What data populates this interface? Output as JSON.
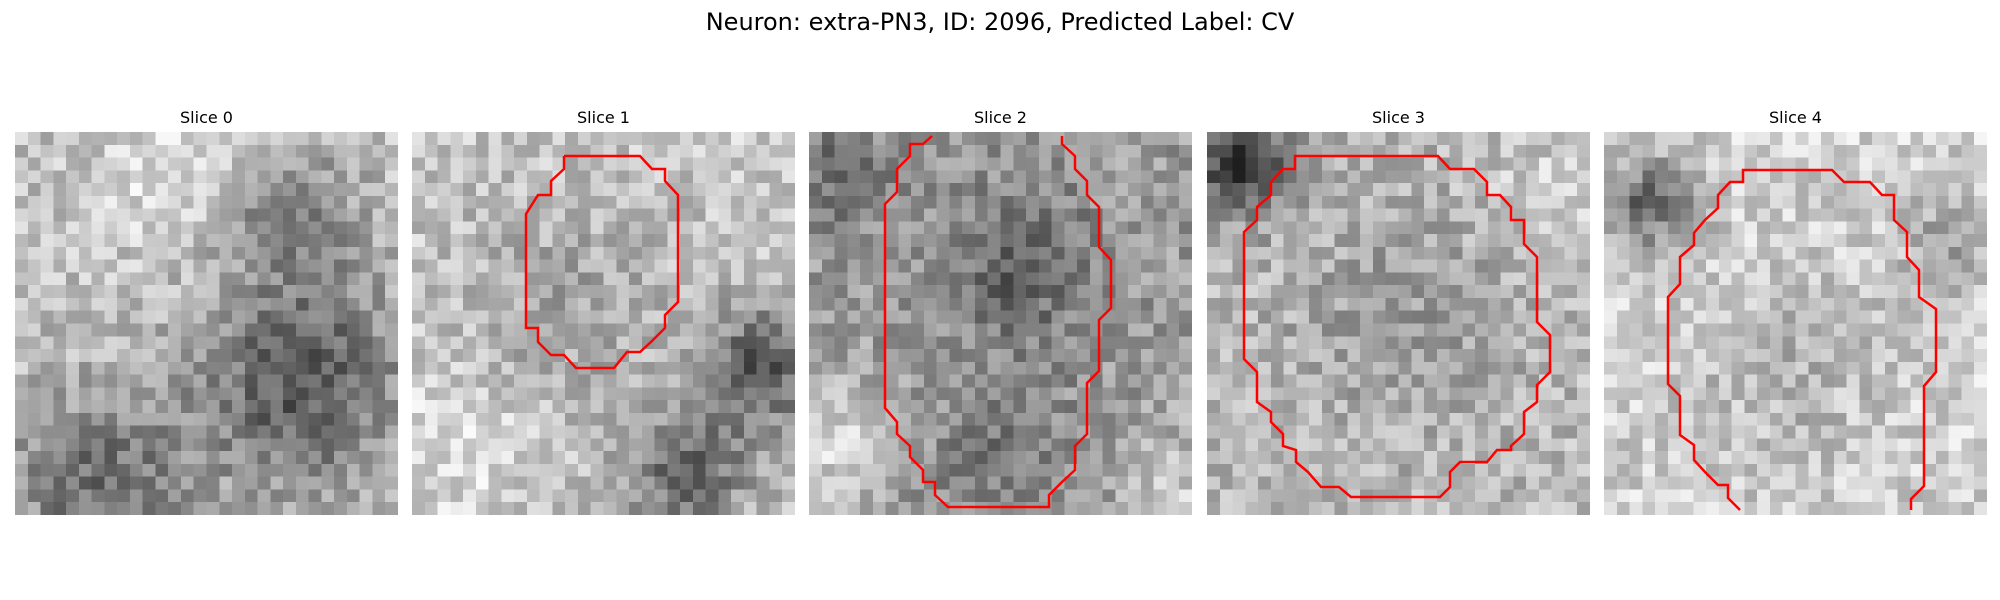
{
  "figure": {
    "suptitle": "Neuron: extra-PN3, ID: 2096, Predicted Label: CV",
    "panels": [
      {
        "title": "Slice 0"
      },
      {
        "title": "Slice 1"
      },
      {
        "title": "Slice 2"
      },
      {
        "title": "Slice 3"
      },
      {
        "title": "Slice 4"
      }
    ]
  },
  "colors": {
    "contour": "#ff0000",
    "colormap": "gray_r"
  }
}
